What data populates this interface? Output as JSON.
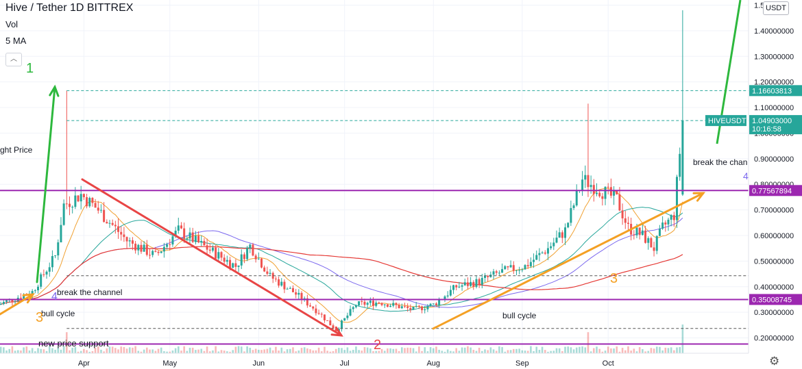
{
  "header": {
    "title": "Hive / Tether  1D  BITTREX",
    "vol_label": "Vol",
    "ma_label": "5 MA",
    "collapse_icon": "chevron-up-icon"
  },
  "currency_button": "USDT",
  "settings_icon": "gear-icon",
  "colors": {
    "up": "#26a69a",
    "down": "#ef5350",
    "ma_fast": "#f0a030",
    "ma_mid": "#26a69a",
    "ma_slow": "#7b68ee",
    "ma_long": "#e53935",
    "level": "#9c27b0",
    "arrow_green": "#2db83d",
    "arrow_red": "#e84545",
    "arrow_orange": "#f4a024",
    "dashed_green": "#26a69a",
    "dashed_gray": "#555555"
  },
  "chart_data": {
    "type": "candlestick",
    "symbol": "HIVEUSDT",
    "exchange": "BITTREX",
    "interval": "1D",
    "y_ticks": [
      "0.20000000",
      "0.30000000",
      "0.40000000",
      "0.50000000",
      "0.60000000",
      "0.70000000",
      "0.80000000",
      "0.90000000",
      "1.00000000",
      "1.10000000",
      "1.20000000",
      "1.30000000",
      "1.40000000",
      "1.5"
    ],
    "ylim": [
      0.14,
      1.52
    ],
    "x_ticks": [
      "Apr",
      "May",
      "Jun",
      "Jul",
      "Aug",
      "Sep",
      "Oct"
    ],
    "price_labels": [
      {
        "text": "1.16603813",
        "value": 1.16603813,
        "color": "#26a69a"
      },
      {
        "text": "1.04903000",
        "value": 1.04903,
        "color": "#26a69a",
        "sub": "10:16:58",
        "tag": "HIVEUSDT"
      },
      {
        "text": "0.77567894",
        "value": 0.77567894,
        "color": "#9c27b0"
      },
      {
        "text": "0.35008745",
        "value": 0.35008745,
        "color": "#9c27b0"
      }
    ],
    "horizontal_levels": [
      0.77567894,
      0.35008745,
      0.176
    ],
    "dashed_levels": [
      {
        "value": 1.166,
        "color": "#26a69a"
      },
      {
        "value": 1.049,
        "color": "#26a69a"
      },
      {
        "value": 0.443,
        "color": "#555555"
      },
      {
        "value": 0.237,
        "color": "#555555"
      }
    ],
    "annotations": [
      {
        "text": "1",
        "color": "#2db83d",
        "size": 20
      },
      {
        "text": "ght Price",
        "color": "#131722",
        "size": 12
      },
      {
        "text": "break the channel",
        "color": "#131722",
        "size": 12
      },
      {
        "text": "bull cycle",
        "color": "#131722",
        "size": 12
      },
      {
        "text": "new price support",
        "color": "#131722",
        "size": 13
      },
      {
        "text": "3",
        "color": "#f4a024",
        "size": 20
      },
      {
        "text": "2",
        "color": "#e84545",
        "size": 20
      },
      {
        "text": "bull cycle",
        "color": "#131722",
        "size": 12
      },
      {
        "text": "3",
        "color": "#f4a024",
        "size": 20
      },
      {
        "text": "break the chan",
        "color": "#131722",
        "size": 12
      },
      {
        "text": "4",
        "color": "#7b68ee",
        "size": 16
      },
      {
        "text": "4",
        "color": "#7b68ee",
        "size": 14
      }
    ],
    "ohlc_anchor": [
      {
        "day": 0,
        "close": 0.33
      },
      {
        "day": 12,
        "close": 0.38
      },
      {
        "day": 20,
        "close": 0.52
      },
      {
        "day": 23,
        "close": 0.72
      },
      {
        "day": 29,
        "close": 0.76
      },
      {
        "day": 35,
        "close": 0.7
      },
      {
        "day": 45,
        "close": 0.58
      },
      {
        "day": 55,
        "close": 0.52
      },
      {
        "day": 63,
        "close": 0.62
      },
      {
        "day": 73,
        "close": 0.55
      },
      {
        "day": 83,
        "close": 0.48
      },
      {
        "day": 88,
        "close": 0.56
      },
      {
        "day": 95,
        "close": 0.44
      },
      {
        "day": 103,
        "close": 0.38
      },
      {
        "day": 112,
        "close": 0.3
      },
      {
        "day": 118,
        "close": 0.23
      },
      {
        "day": 125,
        "close": 0.33
      },
      {
        "day": 133,
        "close": 0.34
      },
      {
        "day": 145,
        "close": 0.31
      },
      {
        "day": 152,
        "close": 0.33
      },
      {
        "day": 160,
        "close": 0.4
      },
      {
        "day": 168,
        "close": 0.42
      },
      {
        "day": 176,
        "close": 0.46
      },
      {
        "day": 184,
        "close": 0.48
      },
      {
        "day": 192,
        "close": 0.55
      },
      {
        "day": 198,
        "close": 0.62
      },
      {
        "day": 204,
        "close": 0.82
      },
      {
        "day": 210,
        "close": 0.78
      },
      {
        "day": 216,
        "close": 0.74
      },
      {
        "day": 220,
        "close": 0.63
      },
      {
        "day": 225,
        "close": 0.6
      },
      {
        "day": 229,
        "close": 0.55
      },
      {
        "day": 232,
        "close": 0.63
      },
      {
        "day": 236,
        "close": 0.68
      },
      {
        "day": 239,
        "close": 1.049
      }
    ],
    "spikes": [
      {
        "day": 24,
        "high": 1.166
      },
      {
        "day": 206,
        "high": 1.115
      },
      {
        "day": 239,
        "high": 1.48
      }
    ]
  }
}
